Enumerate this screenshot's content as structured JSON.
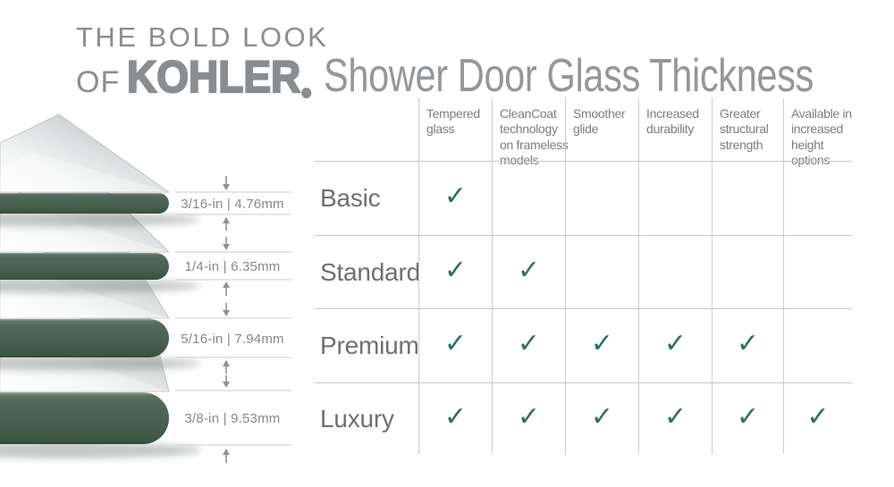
{
  "logo": {
    "line1": "THE BOLD LOOK",
    "of": "OF",
    "brand": "KOHLER",
    "registered": "®"
  },
  "title": "Shower Door Glass Thickness",
  "diagram": {
    "measurements": [
      {
        "label": "3/16-in | 4.76mm"
      },
      {
        "label": "1/4-in | 6.35mm"
      },
      {
        "label": "5/16-in | 7.94mm"
      },
      {
        "label": "3/8-in | 9.53mm"
      }
    ]
  },
  "table": {
    "columns": [
      "Tempered glass",
      "CleanCoat technology on frameless models",
      "Smoother glide",
      "Increased durability",
      "Greater structural strength",
      "Available in increased height options"
    ],
    "rows": [
      {
        "label": "Basic",
        "checks": [
          true,
          false,
          false,
          false,
          false,
          false
        ]
      },
      {
        "label": "Standard",
        "checks": [
          true,
          true,
          false,
          false,
          false,
          false
        ]
      },
      {
        "label": "Premium",
        "checks": [
          true,
          true,
          true,
          true,
          true,
          false
        ]
      },
      {
        "label": "Luxury",
        "checks": [
          true,
          true,
          true,
          true,
          true,
          true
        ]
      }
    ],
    "check_glyph": "✓"
  },
  "colors": {
    "logo_gray": "#8a8d90",
    "title_gray": "#94979a",
    "header_text": "#7a7d7f",
    "row_label": "#6d7072",
    "check_teal": "#2e6f62",
    "grid_line": "#cbcdcd",
    "glass_green_dark": "#3c5444",
    "glass_green_mid": "#47604f",
    "glass_gray_light": "#f2f4f4",
    "measure_text": "#85888a"
  }
}
